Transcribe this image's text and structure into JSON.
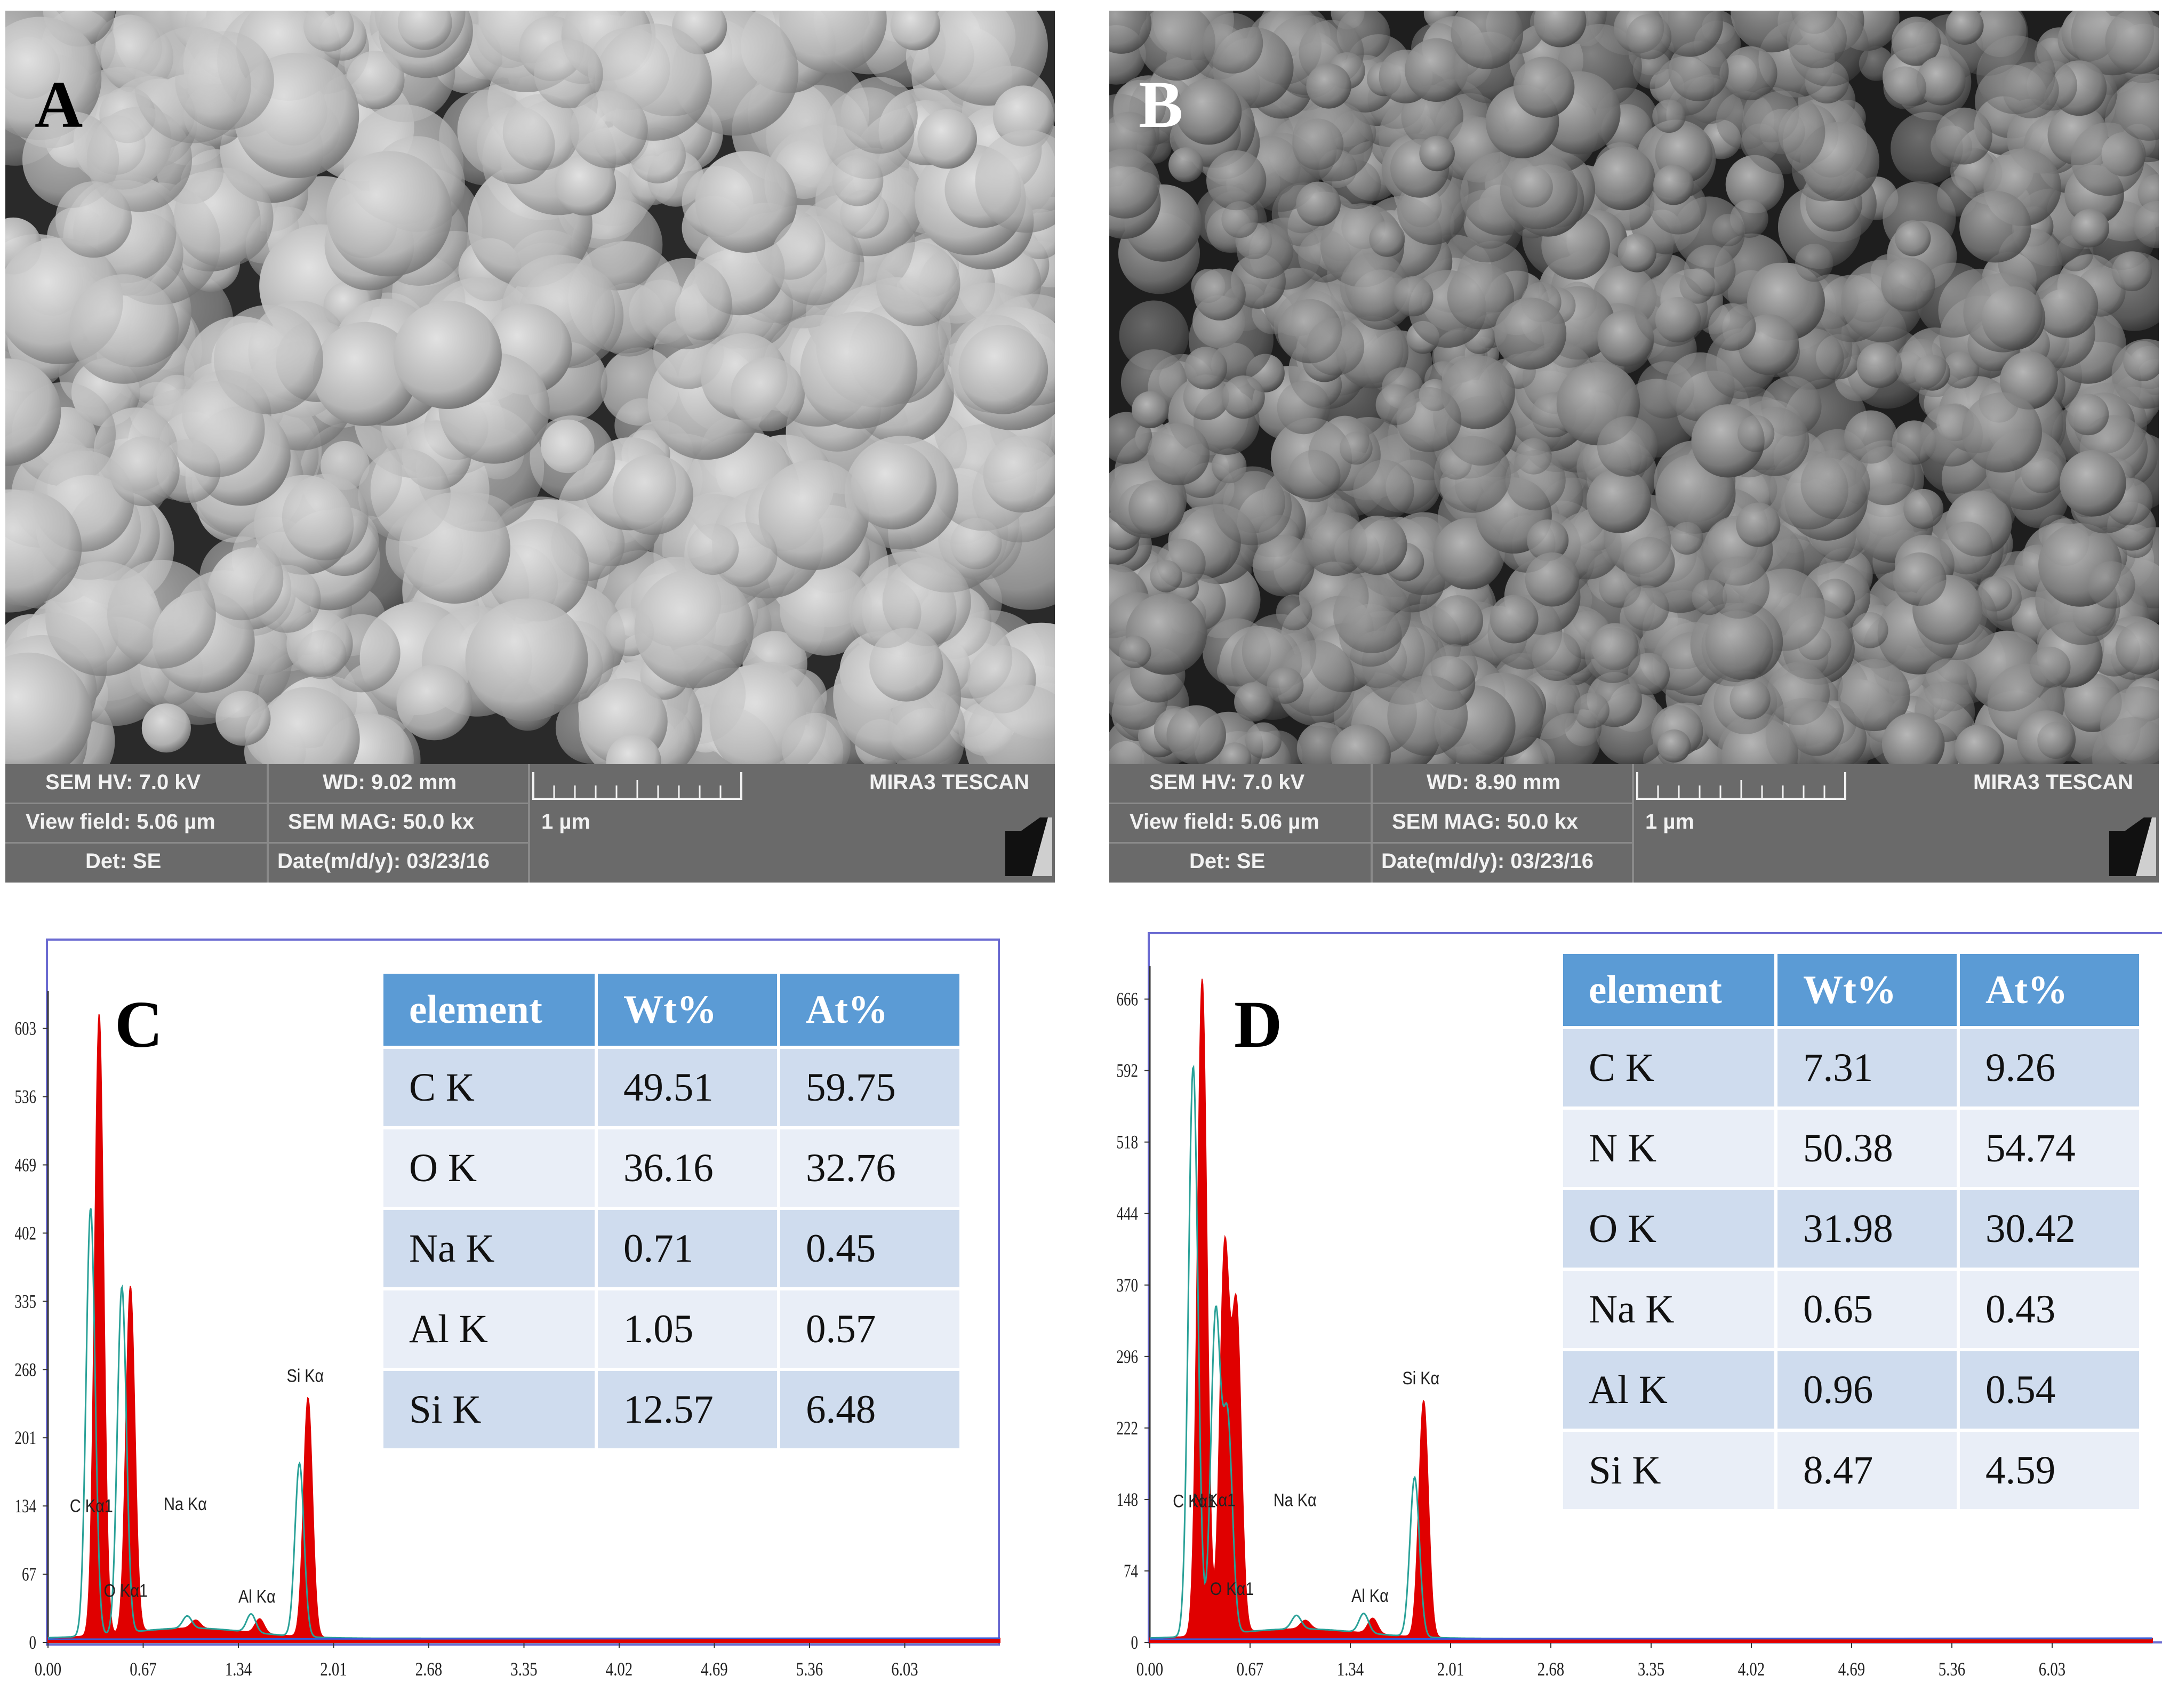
{
  "panels": {
    "A": {
      "letter": "A",
      "sem_hv": "SEM HV: 7.0 kV",
      "view_field": "View field: 5.06 µm",
      "det": "Det: SE",
      "wd": "WD: 9.02 mm",
      "mag": "SEM MAG: 50.0 kx",
      "date": "Date(m/d/y): 03/23/16",
      "scale": "1 µm",
      "instrument": "MIRA3 TESCAN"
    },
    "B": {
      "letter": "B",
      "sem_hv": "SEM HV: 7.0 kV",
      "view_field": "View field: 5.06 µm",
      "det": "Det: SE",
      "wd": "WD: 8.90 mm",
      "mag": "SEM MAG: 50.0 kx",
      "date": "Date(m/d/y): 03/23/16",
      "scale": "1 µm",
      "instrument": "MIRA3 TESCAN"
    },
    "C": {
      "letter": "C",
      "table": {
        "headers": [
          "element",
          "Wt%",
          "At%"
        ],
        "rows": [
          [
            "C K",
            "49.51",
            "59.75"
          ],
          [
            "O K",
            "36.16",
            "32.76"
          ],
          [
            "Na K",
            "0.71",
            "0.45"
          ],
          [
            "Al K",
            "1.05",
            "0.57"
          ],
          [
            "Si K",
            "12.57",
            "6.48"
          ]
        ]
      }
    },
    "D": {
      "letter": "D",
      "table": {
        "headers": [
          "element",
          "Wt%",
          "At%"
        ],
        "rows": [
          [
            "C K",
            "7.31",
            "9.26"
          ],
          [
            "N K",
            "50.38",
            "54.74"
          ],
          [
            "O K",
            "31.98",
            "30.42"
          ],
          [
            "Na K",
            "0.65",
            "0.43"
          ],
          [
            "Al K",
            "0.96",
            "0.54"
          ],
          [
            "Si K",
            "8.47",
            "4.59"
          ]
        ]
      }
    }
  },
  "chart_data": [
    {
      "type": "line",
      "panel": "C",
      "x_ticks": [
        "0.00",
        "0.67",
        "1.34",
        "2.01",
        "2.68",
        "3.35",
        "4.02",
        "4.69",
        "5.36",
        "6.03"
      ],
      "y_ticks": [
        "0",
        "67",
        "134",
        "201",
        "268",
        "335",
        "402",
        "469",
        "536",
        "603"
      ],
      "xlim": [
        0,
        6.7
      ],
      "ylim": [
        0,
        640
      ],
      "peaks": [
        {
          "label": "C Kα1",
          "x": 0.36,
          "red": 610,
          "teal": 420
        },
        {
          "label": "O Kα1",
          "x": 0.58,
          "red": 340,
          "teal": 340
        },
        {
          "label": "Na Kα",
          "x": 1.04,
          "red": 8,
          "teal": 12
        },
        {
          "label": "Al Kα",
          "x": 1.49,
          "red": 14,
          "teal": 18
        },
        {
          "label": "Si Kα",
          "x": 1.83,
          "red": 235,
          "teal": 170
        }
      ],
      "series": [
        {
          "color": "#e00000"
        },
        {
          "color": "#2aa198"
        }
      ]
    },
    {
      "type": "line",
      "panel": "D",
      "x_ticks": [
        "0.00",
        "0.67",
        "1.34",
        "2.01",
        "2.68",
        "3.35",
        "4.02",
        "4.69",
        "5.36",
        "6.03"
      ],
      "y_ticks": [
        "0",
        "74",
        "148",
        "222",
        "296",
        "370",
        "444",
        "518",
        "592",
        "666"
      ],
      "xlim": [
        0,
        6.7
      ],
      "ylim": [
        0,
        700
      ],
      "peaks": [
        {
          "label": "C Kα1",
          "x": 0.35,
          "red": 680,
          "teal": 590
        },
        {
          "label": "N Kα1",
          "x": 0.5,
          "red": 395,
          "teal": 330
        },
        {
          "label": "O Kα1",
          "x": 0.58,
          "red": 330,
          "teal": 220
        },
        {
          "label": "Na Kα",
          "x": 1.04,
          "red": 9,
          "teal": 14
        },
        {
          "label": "Al Kα",
          "x": 1.49,
          "red": 16,
          "teal": 20
        },
        {
          "label": "Si Kα",
          "x": 1.83,
          "red": 245,
          "teal": 165
        }
      ],
      "series": [
        {
          "color": "#e00000"
        },
        {
          "color": "#2aa198"
        }
      ]
    }
  ]
}
